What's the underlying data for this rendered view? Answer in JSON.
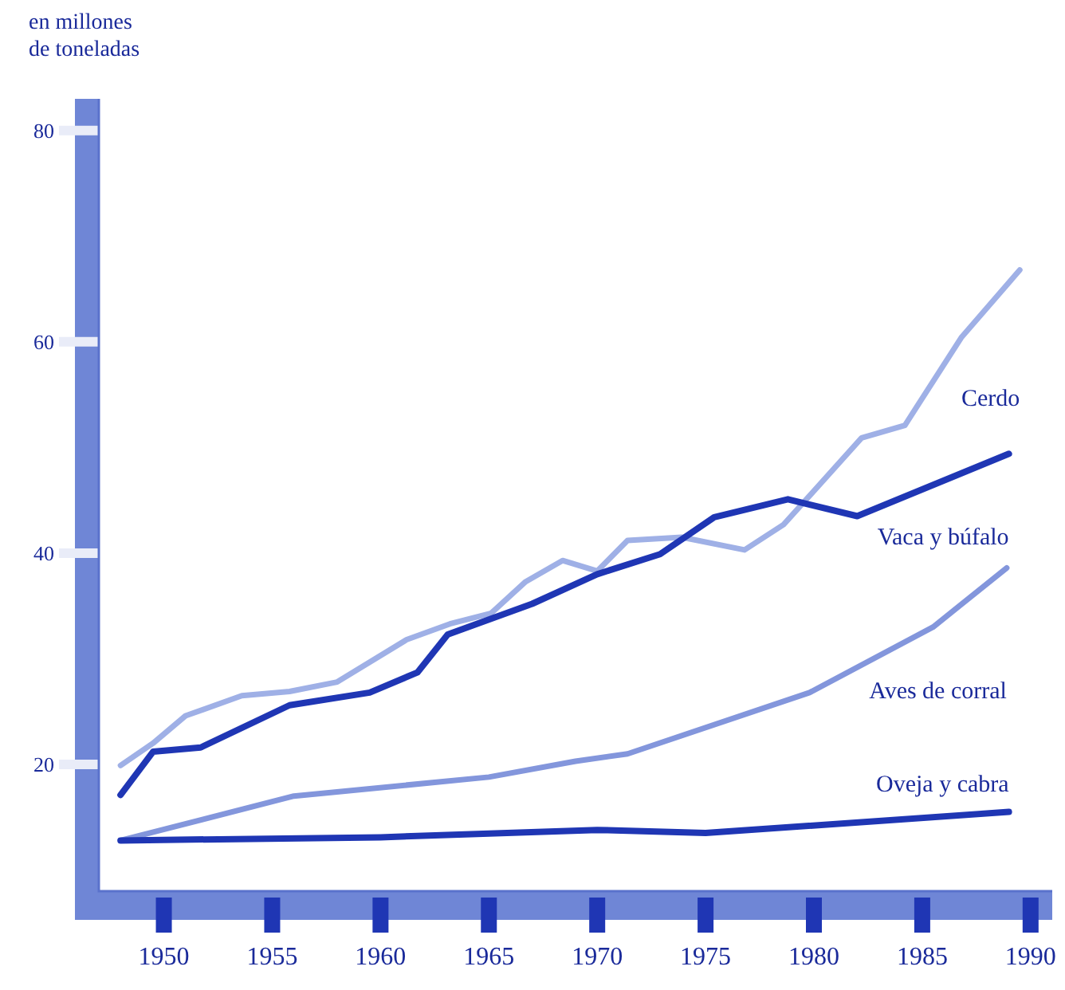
{
  "chart_data": {
    "type": "line",
    "ylabel": "en millones\nde toneladas",
    "xlim": [
      1947,
      1991
    ],
    "ylim": [
      8,
      83
    ],
    "xticks": [
      1950,
      1955,
      1960,
      1965,
      1970,
      1975,
      1980,
      1985,
      1990
    ],
    "yticks": [
      20,
      40,
      60,
      80
    ],
    "grid": false,
    "legend": false,
    "marker": "none",
    "line_style": "solid",
    "series": [
      {
        "name": "Cerdo",
        "color": "#9fb0e6",
        "x": [
          1948,
          1949.5,
          1951,
          1953.6,
          1955.8,
          1958,
          1961.2,
          1963.2,
          1965.1,
          1966.7,
          1968.4,
          1970,
          1971.4,
          1973.9,
          1976.8,
          1978.6,
          1982.2,
          1984.2,
          1986.8,
          1989.5
        ],
        "values": [
          19.9,
          22,
          24.6,
          26.5,
          26.9,
          27.8,
          31.8,
          33.3,
          34.3,
          37.3,
          39.3,
          38.3,
          41.2,
          41.5,
          40.3,
          42.7,
          50.9,
          52.1,
          60.4,
          66.8
        ]
      },
      {
        "name": "Vaca y búfalo",
        "color": "#1f36b4",
        "x": [
          1948,
          1949.5,
          1951.7,
          1955.8,
          1959.5,
          1961.7,
          1963.1,
          1967,
          1970,
          1972.9,
          1975.4,
          1978.8,
          1982,
          1989
        ],
        "values": [
          17.1,
          21.2,
          21.6,
          25.6,
          26.8,
          28.7,
          32.3,
          35.2,
          38,
          39.9,
          43.4,
          45.1,
          43.5,
          49.4
        ]
      },
      {
        "name": "Aves de corral",
        "color": "#8396dc",
        "x": [
          1948,
          1956,
          1965,
          1969,
          1971.4,
          1979.8,
          1985.5,
          1988.9
        ],
        "values": [
          12.8,
          17,
          18.8,
          20.3,
          21,
          26.8,
          33,
          38.6
        ]
      },
      {
        "name": "Oveja y cabra",
        "color": "#1f36b4",
        "x": [
          1948,
          1960,
          1970,
          1975,
          1989
        ],
        "values": [
          12.8,
          13.1,
          13.8,
          13.5,
          15.5
        ]
      }
    ]
  }
}
